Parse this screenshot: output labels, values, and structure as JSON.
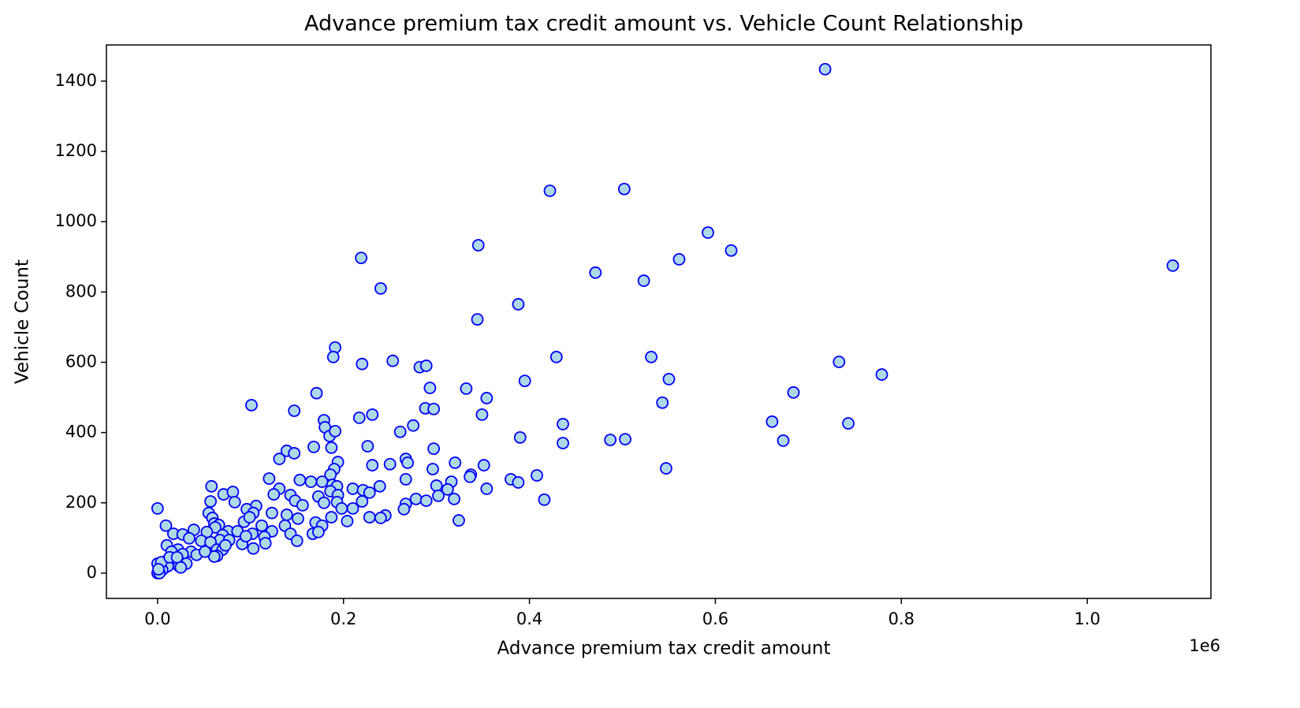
{
  "chart_data": {
    "type": "scatter",
    "title": "Advance premium tax credit amount vs. Vehicle Count Relationship",
    "x_label": "Advance premium tax credit amount",
    "y_label": "Vehicle Count",
    "x_offset_label": "1e6",
    "color": "#add8e6",
    "edgecolor": "#0000ff",
    "x": [
      718000,
      422000,
      502000,
      592000,
      617000,
      345000,
      1092000,
      219000,
      240000,
      471000,
      523000,
      561000,
      388000,
      344000,
      191000,
      189000,
      220000,
      253000,
      282000,
      289000,
      429000,
      531000,
      733000,
      779000,
      171000,
      101000,
      293000,
      332000,
      354000,
      395000,
      550000,
      684000,
      147000,
      217000,
      231000,
      288000,
      297000,
      349000,
      543000,
      179000,
      180000,
      185000,
      191000,
      275000,
      261000,
      436000,
      661000,
      743000,
      390000,
      436000,
      487000,
      503000,
      673000,
      168000,
      187000,
      226000,
      297000,
      139000,
      147000,
      131000,
      194000,
      267000,
      269000,
      231000,
      250000,
      320000,
      351000,
      190000,
      296000,
      547000,
      186000,
      337000,
      380000,
      408000,
      120000,
      153000,
      165000,
      177000,
      267000,
      316000,
      188000,
      193000,
      239000,
      58000,
      388000,
      300000,
      336000,
      131000,
      210000,
      221000,
      228000,
      354000,
      312000,
      125000,
      143000,
      173000,
      186000,
      194000,
      71000,
      81000,
      278000,
      302000,
      319000,
      416000,
      148000,
      179000,
      193000,
      220000,
      289000,
      57000,
      83000,
      0,
      156000,
      106000,
      198000,
      210000,
      267000,
      265000,
      96000,
      123000,
      139000,
      55000,
      103000,
      245000,
      228000,
      240000,
      187000,
      151000,
      204000,
      324000,
      59000,
      93000,
      99000,
      61000,
      66000,
      137000,
      170000,
      177000,
      112000,
      9000,
      62000,
      76000,
      86000,
      123000,
      143000,
      167000,
      173000,
      17000,
      27000,
      39000,
      53000,
      70000,
      102000,
      115000,
      47000,
      67000,
      77000,
      116000,
      150000,
      91000,
      103000,
      34000,
      57000,
      10000,
      64000,
      70000,
      22000,
      15000,
      36000,
      27000,
      42000,
      64000,
      61000,
      11000,
      22000,
      31000,
      15000,
      8000,
      3000,
      0,
      2000,
      1000,
      0,
      11000,
      23000,
      5000,
      4000,
      13000,
      21000,
      25000,
      51000,
      73000,
      95000,
      2000,
      1000
    ],
    "y": [
      1434,
      1088,
      1093,
      969,
      918,
      933,
      875,
      897,
      810,
      855,
      832,
      893,
      765,
      722,
      642,
      615,
      595,
      604,
      586,
      590,
      615,
      615,
      601,
      565,
      512,
      478,
      527,
      525,
      498,
      547,
      552,
      514,
      462,
      442,
      451,
      469,
      467,
      451,
      485,
      435,
      415,
      390,
      404,
      420,
      402,
      424,
      431,
      426,
      386,
      370,
      379,
      381,
      377,
      359,
      357,
      361,
      354,
      348,
      341,
      325,
      316,
      325,
      314,
      307,
      310,
      314,
      307,
      296,
      296,
      298,
      280,
      280,
      267,
      278,
      269,
      265,
      260,
      260,
      267,
      260,
      251,
      247,
      247,
      247,
      258,
      249,
      274,
      240,
      240,
      236,
      229,
      240,
      238,
      224,
      222,
      218,
      233,
      222,
      224,
      231,
      211,
      220,
      211,
      209,
      206,
      200,
      202,
      204,
      206,
      204,
      202,
      184,
      193,
      191,
      184,
      184,
      197,
      182,
      182,
      171,
      166,
      171,
      171,
      164,
      159,
      157,
      159,
      155,
      148,
      150,
      157,
      146,
      159,
      141,
      137,
      135,
      144,
      135,
      135,
      135,
      130,
      119,
      119,
      119,
      112,
      112,
      117,
      112,
      110,
      123,
      117,
      108,
      112,
      103,
      92,
      94,
      94,
      85,
      92,
      83,
      70,
      99,
      88,
      79,
      67,
      67,
      67,
      61,
      61,
      54,
      52,
      49,
      47,
      38,
      36,
      27,
      29,
      16,
      22,
      27,
      11,
      2,
      0,
      20,
      20,
      9,
      31,
      45,
      45,
      16,
      61,
      79,
      105,
      0,
      11
    ],
    "xlim": [
      -55000,
      1133000
    ],
    "ylim": [
      -72,
      1503
    ],
    "xticks": [
      {
        "value": 0,
        "label": "0.0"
      },
      {
        "value": 200000,
        "label": "0.2"
      },
      {
        "value": 400000,
        "label": "0.4"
      },
      {
        "value": 600000,
        "label": "0.6"
      },
      {
        "value": 800000,
        "label": "0.8"
      },
      {
        "value": 1000000,
        "label": "1.0"
      }
    ],
    "yticks": [
      0,
      200,
      400,
      600,
      800,
      1000,
      1200,
      1400
    ]
  }
}
